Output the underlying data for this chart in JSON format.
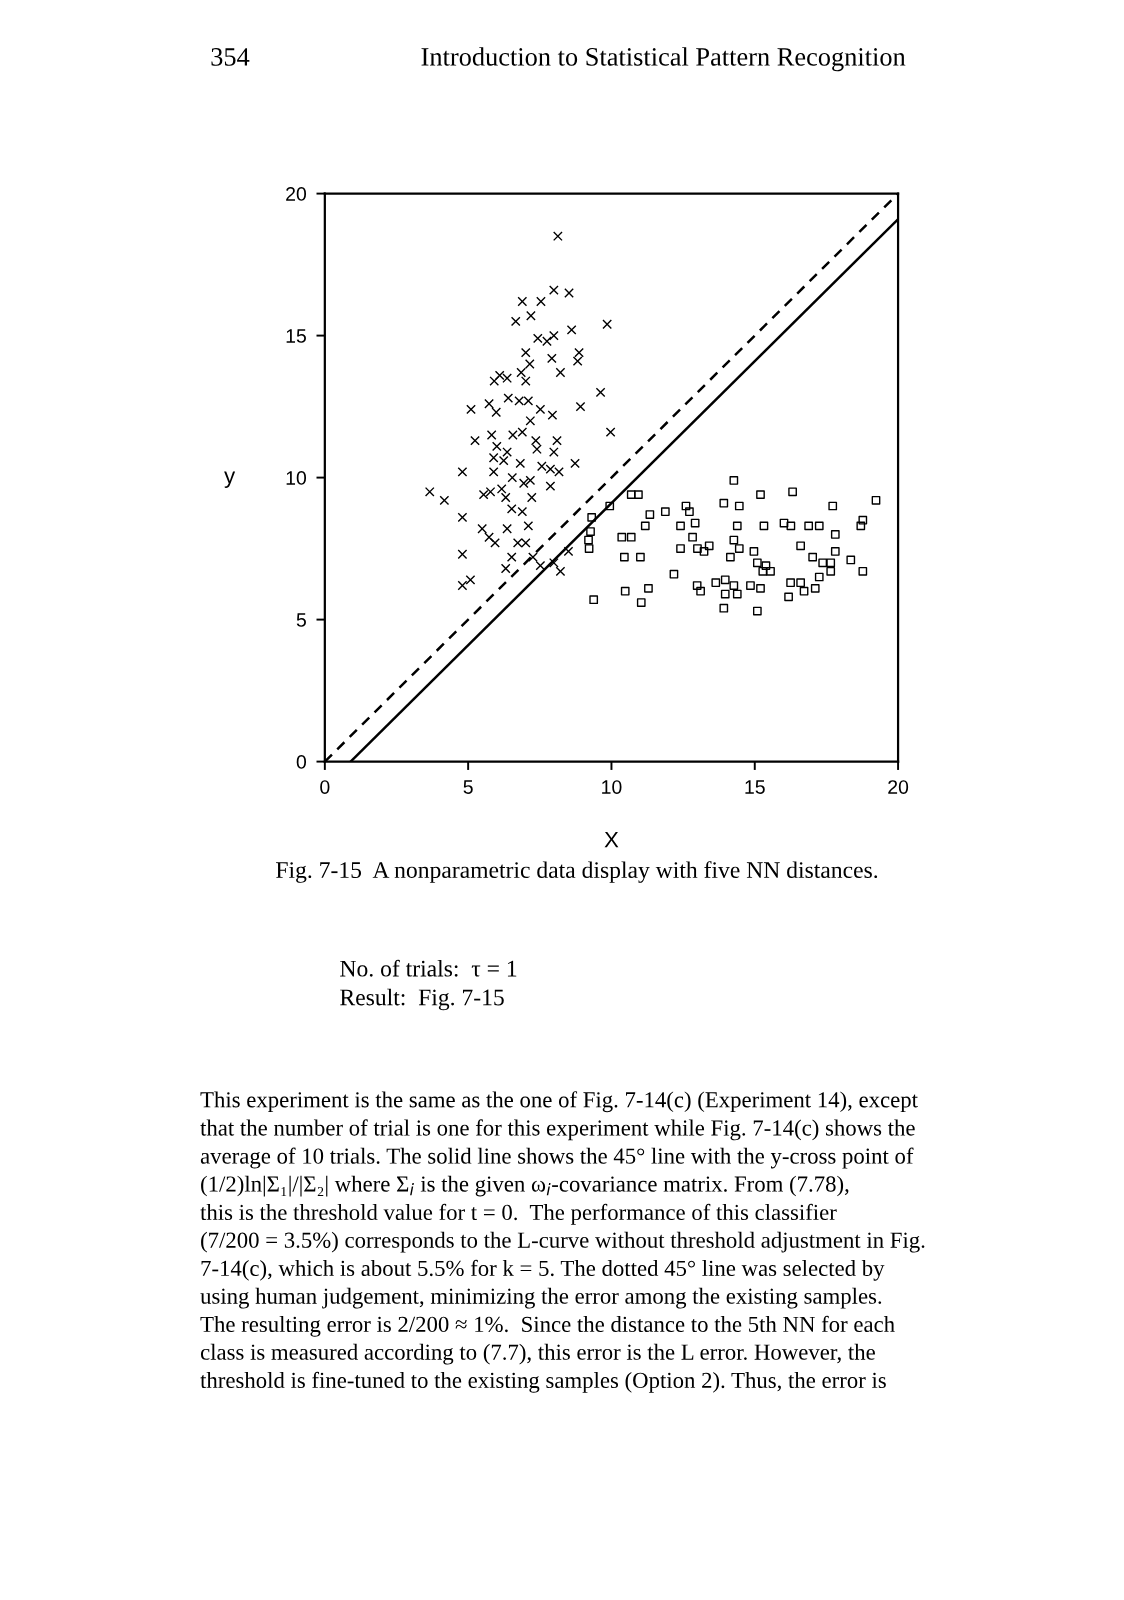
{
  "chart_data": {
    "type": "scatter",
    "title": "Introduction to Statistical Pattern Recognition",
    "xlabel": "X",
    "ylabel": "y",
    "xlim": [
      0,
      20
    ],
    "ylim": [
      0,
      20
    ],
    "xticks": [
      0,
      5,
      10,
      15,
      20
    ],
    "yticks": [
      0,
      5,
      10,
      15,
      20
    ],
    "grid": false,
    "series": [
      {
        "marker": "cross",
        "color": "#000000",
        "x": [
          8.13,
          7.99,
          8.52,
          6.89,
          7.54,
          6.66,
          7.19,
          8.61,
          9.85,
          7.43,
          7.75,
          7.01,
          7.99,
          8.87,
          7.92,
          7.15,
          6.85,
          8.22,
          8.82,
          6.1,
          6.36,
          7.01,
          5.91,
          9.62,
          6.4,
          6.78,
          7.1,
          5.73,
          5.1,
          5.98,
          7.52,
          7.94,
          8.92,
          7.17,
          6.89,
          6.56,
          5.82,
          5.24,
          7.36,
          8.1,
          9.97,
          6.0,
          7.4,
          6.36,
          5.89,
          7.99,
          6.24,
          6.82,
          7.57,
          7.87,
          8.73,
          4.8,
          8.17,
          5.89,
          6.54,
          6.94,
          7.17,
          7.87,
          3.66,
          4.17,
          5.54,
          6.17,
          5.78,
          6.31,
          7.22,
          4.8,
          6.52,
          6.89,
          7.1,
          6.36,
          5.49,
          5.73,
          5.94,
          6.73,
          7.01,
          6.52,
          7.26,
          4.8,
          7.52,
          7.99,
          8.5,
          6.31,
          8.22,
          5.08,
          4.8
        ],
        "values": [
          18.5,
          16.6,
          16.5,
          16.2,
          16.2,
          15.5,
          15.7,
          15.2,
          15.4,
          14.9,
          14.8,
          14.4,
          15.0,
          14.4,
          14.2,
          14.0,
          13.7,
          13.7,
          14.1,
          13.6,
          13.5,
          13.4,
          13.4,
          13.0,
          12.8,
          12.7,
          12.7,
          12.6,
          12.4,
          12.3,
          12.4,
          12.2,
          12.5,
          12.0,
          11.6,
          11.5,
          11.5,
          11.3,
          11.3,
          11.3,
          11.6,
          11.1,
          11.0,
          10.9,
          10.7,
          10.9,
          10.6,
          10.5,
          10.4,
          10.3,
          10.5,
          10.2,
          10.2,
          10.2,
          10.0,
          9.8,
          9.9,
          9.7,
          9.5,
          9.2,
          9.4,
          9.6,
          9.5,
          9.3,
          9.3,
          8.6,
          8.9,
          8.8,
          8.3,
          8.2,
          8.2,
          7.9,
          7.7,
          7.7,
          7.7,
          7.2,
          7.2,
          7.3,
          6.9,
          7.0,
          7.4,
          6.8,
          6.7,
          6.4,
          6.2
        ]
      },
      {
        "marker": "square",
        "color": "#000000",
        "x": [
          9.31,
          9.27,
          9.2,
          9.22,
          10.69,
          10.94,
          9.94,
          11.34,
          11.88,
          11.18,
          10.36,
          10.69,
          10.45,
          11.01,
          9.38,
          10.48,
          11.04,
          11.29,
          12.18,
          12.41,
          12.6,
          12.72,
          12.41,
          12.92,
          12.83,
          13.0,
          13.23,
          13.41,
          13.92,
          14.27,
          14.46,
          14.39,
          14.27,
          14.46,
          14.15,
          13.64,
          13.97,
          13.97,
          13.92,
          14.39,
          14.27,
          13.11,
          12.99,
          15.2,
          15.32,
          16.32,
          16.02,
          16.26,
          16.88,
          17.25,
          17.72,
          17.81,
          18.7,
          18.77,
          19.23,
          14.97,
          15.09,
          15.39,
          15.28,
          15.55,
          14.85,
          15.2,
          15.09,
          16.18,
          16.6,
          16.25,
          16.6,
          16.72,
          17.11,
          17.25,
          17.02,
          17.37,
          17.65,
          17.65,
          17.81,
          18.35,
          18.77
        ],
        "values": [
          8.6,
          8.1,
          7.8,
          7.5,
          9.4,
          9.4,
          9.0,
          8.7,
          8.8,
          8.3,
          7.9,
          7.9,
          7.2,
          7.2,
          5.7,
          6.0,
          5.6,
          6.1,
          6.6,
          7.5,
          9.0,
          8.8,
          8.3,
          8.4,
          7.9,
          7.5,
          7.4,
          7.6,
          9.1,
          9.9,
          9.0,
          8.3,
          7.8,
          7.5,
          7.2,
          6.3,
          6.4,
          5.9,
          5.4,
          5.9,
          6.2,
          6.0,
          6.2,
          9.4,
          8.3,
          9.5,
          8.4,
          8.3,
          8.3,
          8.3,
          9.0,
          8.0,
          8.3,
          8.5,
          9.2,
          7.4,
          7.0,
          6.9,
          6.7,
          6.7,
          6.2,
          6.1,
          5.3,
          5.8,
          7.6,
          6.3,
          6.3,
          6.0,
          6.1,
          6.5,
          7.2,
          7.0,
          7.0,
          6.7,
          7.4,
          7.1,
          6.7
        ]
      },
      {
        "type": "line",
        "line_style": "solid",
        "marker": "none",
        "color": "#000000",
        "x": [
          0.9,
          20
        ],
        "values": [
          0,
          19.1
        ]
      },
      {
        "type": "line",
        "line_style": "dashed",
        "marker": "none",
        "color": "#000000",
        "x": [
          0,
          20
        ],
        "values": [
          0,
          20
        ]
      }
    ],
    "annotations": [
      "354",
      "Fig. 7-15  A nonparametric data display with five NN distances.",
      "No. of trials:  τ = 1\nResult:  Fig. 7-15",
      "This experiment is the same as the one of Fig. 7-14(c) (Experiment 14), except\nthat the number of trial is one for this experiment while Fig. 7-14(c) shows the\naverage of 10 trials. The solid line shows the 45° line with the y-cross point of\n(1/2)ln|Σ₁|/|Σ₂| where Σ$_{i}$ is the given ω$_{i}$-covariance matrix. From (7.78),\nthis is the threshold value for t = 0.  The performance of this classifier\n(7/200 = 3.5%) corresponds to the L-curve without threshold adjustment in Fig.\n7-14(c), which is about 5.5% for k = 5. The dotted 45° line was selected by\nusing human judgement, minimizing the error among the existing samples.\nThe resulting error is 2/200 ≈ 1%.  Since the distance to the 5th NN for each\nclass is measured according to (7.7), this error is the L error. However, the\nthreshold is fine-tuned to the existing samples (Option 2). Thus, the error is"
    ]
  }
}
